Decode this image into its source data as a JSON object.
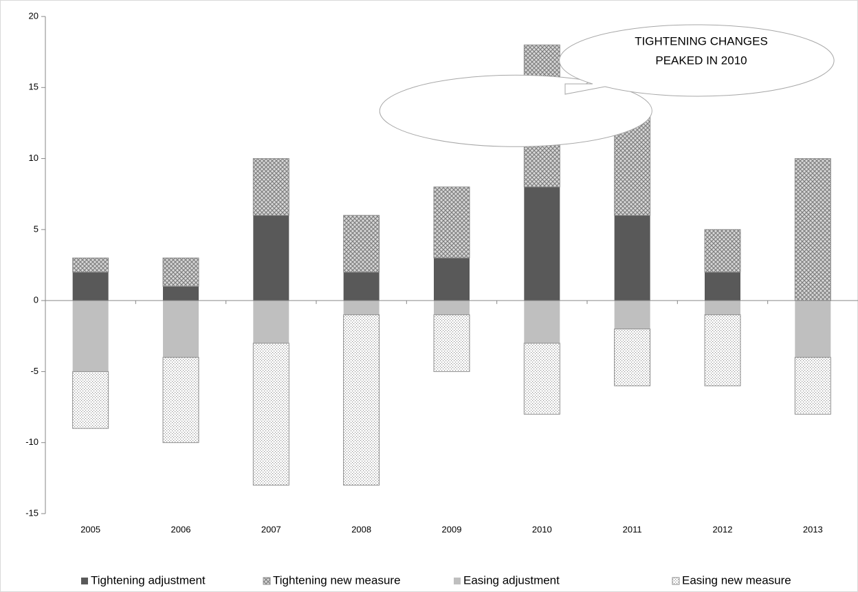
{
  "chart_data": {
    "type": "bar",
    "stacked": true,
    "annotation": [
      "TIGHTENING CHANGES",
      "PEAKED IN 2010"
    ],
    "categories": [
      "2005",
      "2006",
      "2007",
      "2008",
      "2009",
      "2010",
      "2011",
      "2012",
      "2013"
    ],
    "series": [
      {
        "name": "Tightening adjustment",
        "color": "#595959",
        "pattern": "solid",
        "values": [
          2,
          1,
          6,
          2,
          3,
          8,
          6,
          2,
          0
        ]
      },
      {
        "name": "Tightening new measure",
        "color": "#8c8c8c",
        "pattern": "crosshatch",
        "values": [
          1,
          2,
          4,
          4,
          5,
          10,
          7,
          3,
          10
        ]
      },
      {
        "name": "Easing adjustment",
        "color": "#bfbfbf",
        "pattern": "solid",
        "values": [
          -5,
          -4,
          -3,
          -1,
          -1,
          -3,
          -2,
          -1,
          -4
        ]
      },
      {
        "name": "Easing new measure",
        "color": "#a6a6a6",
        "pattern": "dots",
        "values": [
          -4,
          -6,
          -10,
          -12,
          -4,
          -5,
          -4,
          -5,
          -4
        ]
      }
    ],
    "ylim": [
      -15,
      20
    ],
    "yticks": [
      -15,
      -10,
      -5,
      0,
      5,
      10,
      15,
      20
    ],
    "legend": "bottom"
  }
}
